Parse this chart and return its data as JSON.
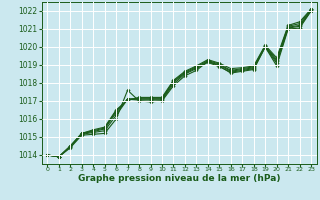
{
  "bg_color": "#cbe8ef",
  "grid_color": "#ffffff",
  "line_color": "#1a5c1a",
  "xlabel": "Graphe pression niveau de la mer (hPa)",
  "xlabel_color": "#1a5c1a",
  "ylim": [
    1013.5,
    1022.5
  ],
  "xlim": [
    -0.5,
    23.5
  ],
  "yticks": [
    1014,
    1015,
    1016,
    1017,
    1018,
    1019,
    1020,
    1021,
    1022
  ],
  "xticks": [
    0,
    1,
    2,
    3,
    4,
    5,
    6,
    7,
    8,
    9,
    10,
    11,
    12,
    13,
    14,
    15,
    16,
    17,
    18,
    19,
    20,
    21,
    22,
    23
  ],
  "series": [
    [
      1014.0,
      1013.9,
      1014.4,
      1015.1,
      1015.15,
      1015.2,
      1016.0,
      1017.6,
      1017.0,
      1016.95,
      1017.0,
      1017.85,
      1018.4,
      1018.7,
      1019.2,
      1018.95,
      1018.55,
      1018.65,
      1018.75,
      1020.0,
      1018.95,
      1021.0,
      1021.05,
      1022.0
    ],
    [
      1014.0,
      1013.9,
      1014.45,
      1015.15,
      1015.25,
      1015.35,
      1016.2,
      1017.1,
      1017.05,
      1017.05,
      1017.05,
      1017.95,
      1018.5,
      1018.8,
      1019.15,
      1018.9,
      1018.6,
      1018.7,
      1018.8,
      1020.0,
      1019.1,
      1021.05,
      1021.15,
      1022.0
    ],
    [
      1014.0,
      1013.9,
      1014.45,
      1015.2,
      1015.3,
      1015.45,
      1016.35,
      1017.1,
      1017.1,
      1017.1,
      1017.1,
      1018.05,
      1018.55,
      1018.85,
      1019.2,
      1019.0,
      1018.65,
      1018.75,
      1018.85,
      1020.05,
      1019.2,
      1021.1,
      1021.2,
      1022.05
    ],
    [
      1014.0,
      1013.9,
      1014.5,
      1015.2,
      1015.35,
      1015.5,
      1016.45,
      1017.1,
      1017.15,
      1017.15,
      1017.15,
      1018.1,
      1018.6,
      1018.9,
      1019.25,
      1019.05,
      1018.7,
      1018.8,
      1018.9,
      1020.05,
      1019.3,
      1021.15,
      1021.3,
      1022.1
    ],
    [
      1014.0,
      1013.9,
      1014.5,
      1015.2,
      1015.4,
      1015.55,
      1016.5,
      1017.05,
      1017.2,
      1017.2,
      1017.2,
      1018.15,
      1018.65,
      1018.95,
      1019.3,
      1019.1,
      1018.8,
      1018.85,
      1018.95,
      1020.1,
      1019.4,
      1021.2,
      1021.4,
      1022.1
    ]
  ]
}
